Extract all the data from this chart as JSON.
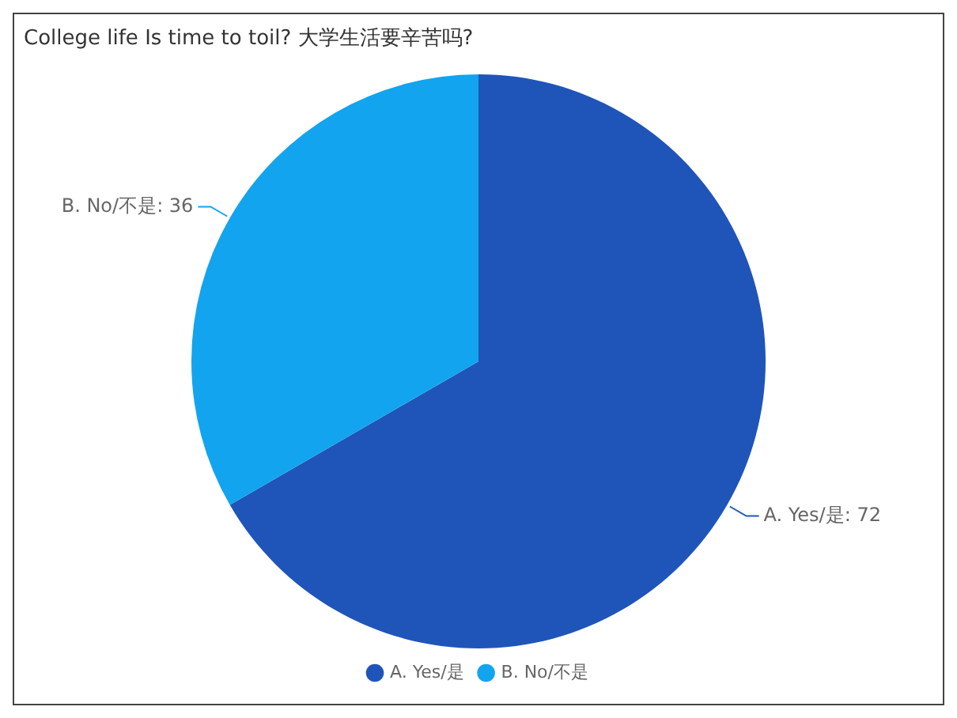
{
  "chart_data": {
    "type": "pie",
    "title": "College life Is time to toil? 大学生活要辛苦吗?",
    "categories": [
      "A. Yes/是",
      "B. No/不是"
    ],
    "values": [
      72,
      36
    ],
    "value_labels": [
      "A. Yes/是: 72",
      "B. No/不是: 36"
    ],
    "colors": [
      "#1f55b8",
      "#12a4ef"
    ],
    "legend": "bottom"
  }
}
